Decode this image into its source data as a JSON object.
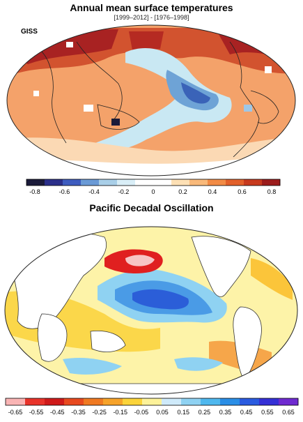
{
  "panel_top": {
    "title": "Annual mean surface temperatures",
    "subtitle": "[1999–2012] - [1976–1998]",
    "source_label": "GISS",
    "colorbar": {
      "ticks": [
        "-0.8",
        "-0.6",
        "-0.4",
        "-0.2",
        "0",
        "0.2",
        "0.4",
        "0.6",
        "0.8"
      ],
      "colors": [
        "#1b1b3a",
        "#2b2f8a",
        "#3e5cbf",
        "#6a9ad6",
        "#a9cfe8",
        "#d9eef7",
        "#ffffff",
        "#ffffff",
        "#fde0b5",
        "#f9b97a",
        "#f28b45",
        "#e2602a",
        "#c73a1e",
        "#9c1c1c"
      ]
    }
  },
  "panel_bottom": {
    "title": "Pacific Decadal Oscillation",
    "colorbar": {
      "ticks": [
        "-0.65",
        "-0.55",
        "-0.45",
        "-0.35",
        "-0.25",
        "-0.15",
        "-0.05",
        "0.05",
        "0.15",
        "0.25",
        "0.35",
        "0.45",
        "0.55",
        "0.65"
      ],
      "colors": [
        "#f9b4b4",
        "#e8332a",
        "#cf1a1a",
        "#e84a1f",
        "#f07a22",
        "#f6a32a",
        "#fbd43a",
        "#fdf29a",
        "#cfeafa",
        "#8fd2f2",
        "#4fb8ee",
        "#2a8ee6",
        "#2a5be0",
        "#3530d6",
        "#6f2ad0"
      ]
    }
  }
}
